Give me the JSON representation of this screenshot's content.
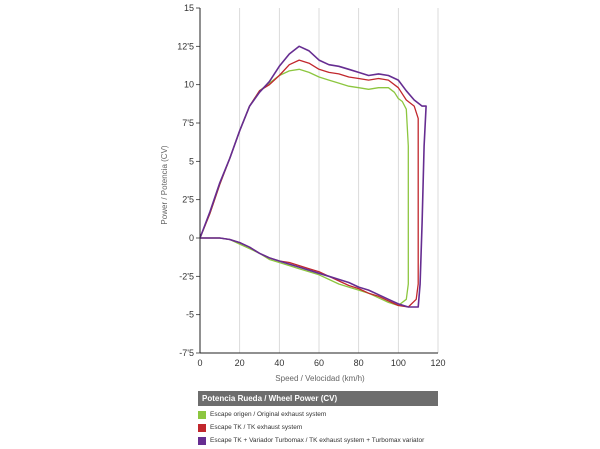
{
  "chart_data": {
    "type": "line",
    "title": "",
    "xlabel": "Speed / Velocidad (km/h)",
    "ylabel": "Power / Potencia (CV)",
    "xlim": [
      0,
      120
    ],
    "ylim": [
      -7.5,
      15
    ],
    "x_ticks": [
      0,
      20,
      40,
      60,
      80,
      100,
      120
    ],
    "x_tick_labels": [
      "0",
      "20",
      "40",
      "60",
      "80",
      "100",
      "120"
    ],
    "y_ticks": [
      15,
      12.5,
      10,
      7.5,
      5,
      2.5,
      0,
      -2.5,
      -5,
      -7.5
    ],
    "y_tick_labels": [
      "15",
      "12'5",
      "10",
      "7'5",
      "5",
      "2'5",
      "0",
      "-2'5",
      "-5",
      "-7'5"
    ],
    "grid": true,
    "legend_title": "Potencia Rueda / Wheel Power (CV)",
    "legend_position": "bottom",
    "series": [
      {
        "name": "Escape origen / Original exhaust system",
        "color": "#8cc63f",
        "points": [
          [
            0,
            0
          ],
          [
            5,
            1.6
          ],
          [
            10,
            3.5
          ],
          [
            15,
            5.2
          ],
          [
            20,
            7
          ],
          [
            25,
            8.6
          ],
          [
            30,
            9.6
          ],
          [
            35,
            10.1
          ],
          [
            40,
            10.6
          ],
          [
            45,
            10.9
          ],
          [
            50,
            11
          ],
          [
            55,
            10.8
          ],
          [
            60,
            10.5
          ],
          [
            65,
            10.3
          ],
          [
            70,
            10.1
          ],
          [
            75,
            9.9
          ],
          [
            80,
            9.8
          ],
          [
            85,
            9.7
          ],
          [
            90,
            9.8
          ],
          [
            95,
            9.8
          ],
          [
            98,
            9.5
          ],
          [
            100,
            9.1
          ],
          [
            102,
            8.9
          ],
          [
            104,
            8.4
          ],
          [
            105,
            6
          ],
          [
            105,
            -3
          ],
          [
            104,
            -4
          ],
          [
            100,
            -4.4
          ],
          [
            95,
            -4.2
          ],
          [
            90,
            -3.9
          ],
          [
            85,
            -3.6
          ],
          [
            80,
            -3.4
          ],
          [
            75,
            -3.2
          ],
          [
            70,
            -3
          ],
          [
            65,
            -2.7
          ],
          [
            60,
            -2.4
          ],
          [
            55,
            -2.2
          ],
          [
            50,
            -2
          ],
          [
            45,
            -1.8
          ],
          [
            40,
            -1.6
          ],
          [
            35,
            -1.4
          ],
          [
            30,
            -1
          ],
          [
            25,
            -0.7
          ],
          [
            20,
            -0.4
          ],
          [
            15,
            -0.1
          ],
          [
            10,
            0
          ],
          [
            5,
            0
          ],
          [
            0,
            0
          ]
        ]
      },
      {
        "name": "Escape TK  / TK exhaust  system",
        "color": "#c1272d",
        "points": [
          [
            0,
            0
          ],
          [
            5,
            1.6
          ],
          [
            10,
            3.5
          ],
          [
            15,
            5.2
          ],
          [
            20,
            7
          ],
          [
            25,
            8.6
          ],
          [
            30,
            9.6
          ],
          [
            35,
            10
          ],
          [
            40,
            10.6
          ],
          [
            45,
            11.3
          ],
          [
            50,
            11.6
          ],
          [
            55,
            11.4
          ],
          [
            60,
            11
          ],
          [
            65,
            10.8
          ],
          [
            70,
            10.7
          ],
          [
            75,
            10.5
          ],
          [
            80,
            10.4
          ],
          [
            85,
            10.3
          ],
          [
            90,
            10.4
          ],
          [
            95,
            10.3
          ],
          [
            100,
            9.8
          ],
          [
            104,
            9
          ],
          [
            108,
            8.6
          ],
          [
            110,
            7.8
          ],
          [
            110,
            -3
          ],
          [
            109,
            -4
          ],
          [
            105,
            -4.5
          ],
          [
            100,
            -4.4
          ],
          [
            95,
            -4.1
          ],
          [
            90,
            -3.8
          ],
          [
            85,
            -3.6
          ],
          [
            80,
            -3.3
          ],
          [
            75,
            -3.1
          ],
          [
            70,
            -2.8
          ],
          [
            65,
            -2.5
          ],
          [
            60,
            -2.2
          ],
          [
            55,
            -2
          ],
          [
            50,
            -1.8
          ],
          [
            45,
            -1.6
          ],
          [
            40,
            -1.5
          ],
          [
            35,
            -1.3
          ],
          [
            30,
            -1
          ],
          [
            25,
            -0.6
          ],
          [
            20,
            -0.3
          ],
          [
            15,
            -0.1
          ],
          [
            10,
            0
          ],
          [
            5,
            0
          ],
          [
            0,
            0
          ]
        ]
      },
      {
        "name": "Escape TK + Variador Turbomax  / TK exhaust  system + Turbomax variator",
        "color": "#662d91",
        "points": [
          [
            0,
            0
          ],
          [
            5,
            1.7
          ],
          [
            10,
            3.6
          ],
          [
            15,
            5.2
          ],
          [
            20,
            7
          ],
          [
            25,
            8.6
          ],
          [
            30,
            9.5
          ],
          [
            35,
            10.2
          ],
          [
            40,
            11.2
          ],
          [
            45,
            12
          ],
          [
            50,
            12.5
          ],
          [
            55,
            12.2
          ],
          [
            60,
            11.6
          ],
          [
            65,
            11.3
          ],
          [
            70,
            11.2
          ],
          [
            75,
            11
          ],
          [
            80,
            10.8
          ],
          [
            85,
            10.6
          ],
          [
            90,
            10.7
          ],
          [
            95,
            10.6
          ],
          [
            100,
            10.3
          ],
          [
            104,
            9.6
          ],
          [
            108,
            9
          ],
          [
            112,
            8.6
          ],
          [
            114,
            8.6
          ],
          [
            113,
            6
          ],
          [
            112,
            1
          ],
          [
            111,
            -3
          ],
          [
            110,
            -4.5
          ],
          [
            105,
            -4.5
          ],
          [
            100,
            -4.3
          ],
          [
            95,
            -4
          ],
          [
            90,
            -3.7
          ],
          [
            85,
            -3.4
          ],
          [
            80,
            -3.2
          ],
          [
            75,
            -2.9
          ],
          [
            70,
            -2.7
          ],
          [
            65,
            -2.5
          ],
          [
            60,
            -2.3
          ],
          [
            55,
            -2.1
          ],
          [
            50,
            -1.9
          ],
          [
            45,
            -1.7
          ],
          [
            40,
            -1.5
          ],
          [
            35,
            -1.3
          ],
          [
            30,
            -1
          ],
          [
            25,
            -0.6
          ],
          [
            20,
            -0.3
          ],
          [
            15,
            -0.1
          ],
          [
            10,
            0
          ],
          [
            5,
            0
          ],
          [
            0,
            0
          ]
        ]
      }
    ]
  }
}
